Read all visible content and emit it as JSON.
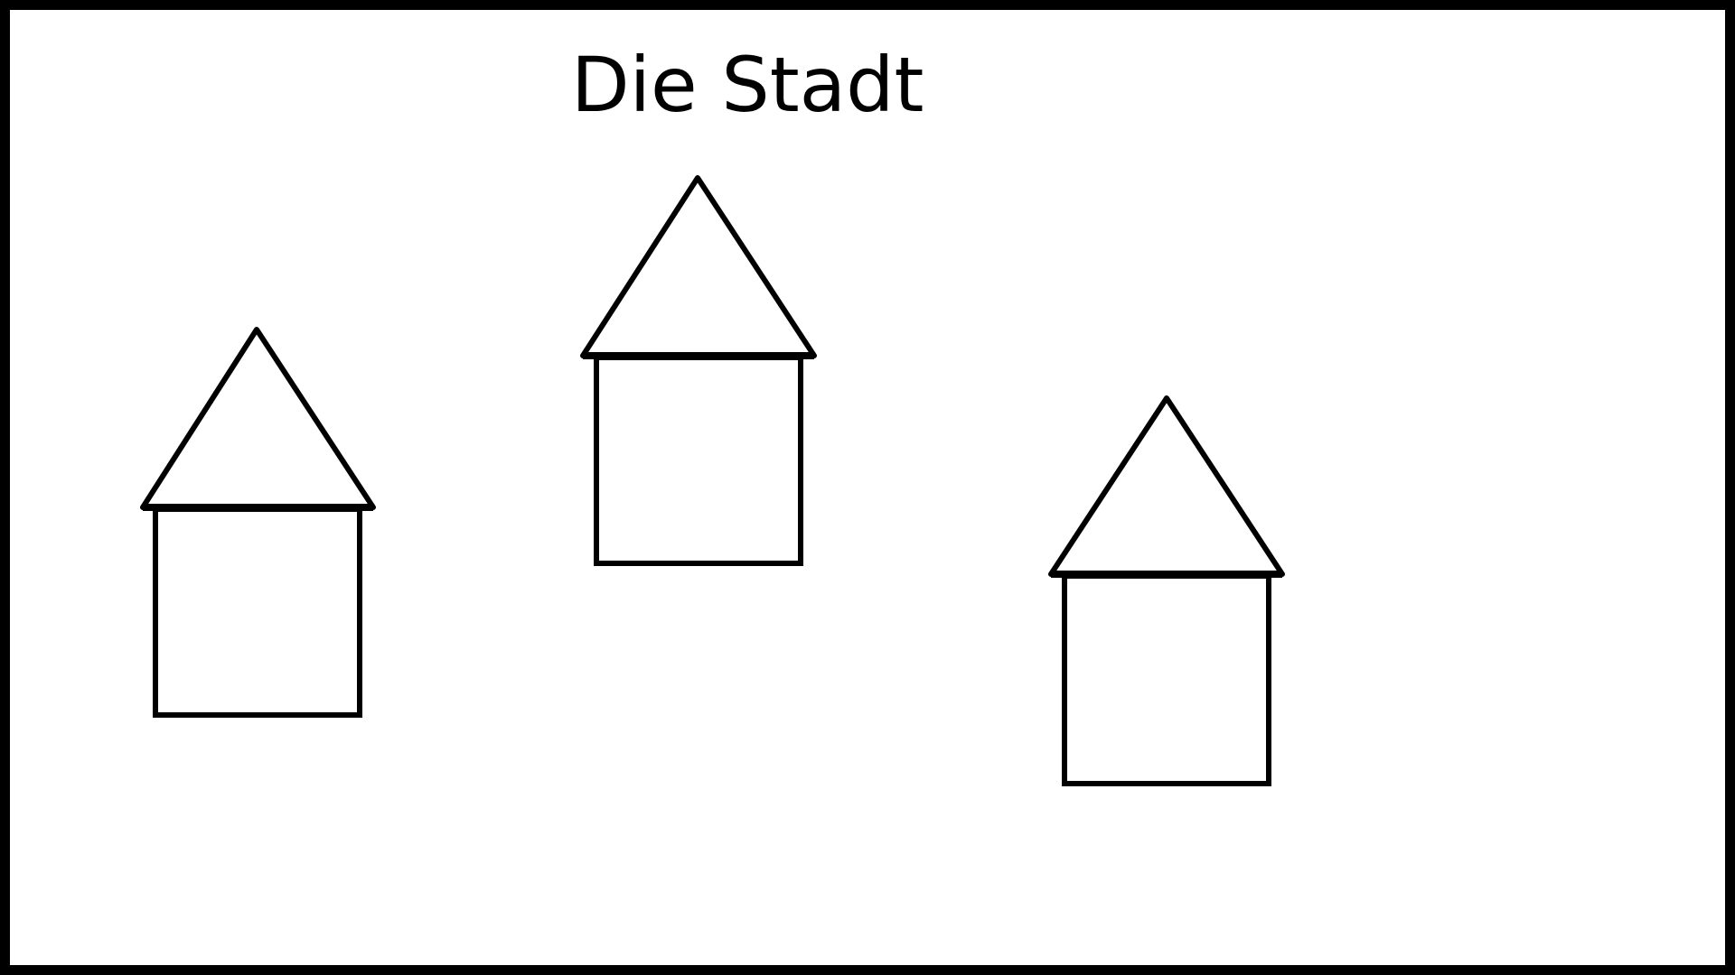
{
  "title": "Die Stadt",
  "stroke_color": "#000000",
  "background_color": "#ffffff",
  "houses": [
    {
      "name": "house-left"
    },
    {
      "name": "house-center"
    },
    {
      "name": "house-right"
    }
  ]
}
